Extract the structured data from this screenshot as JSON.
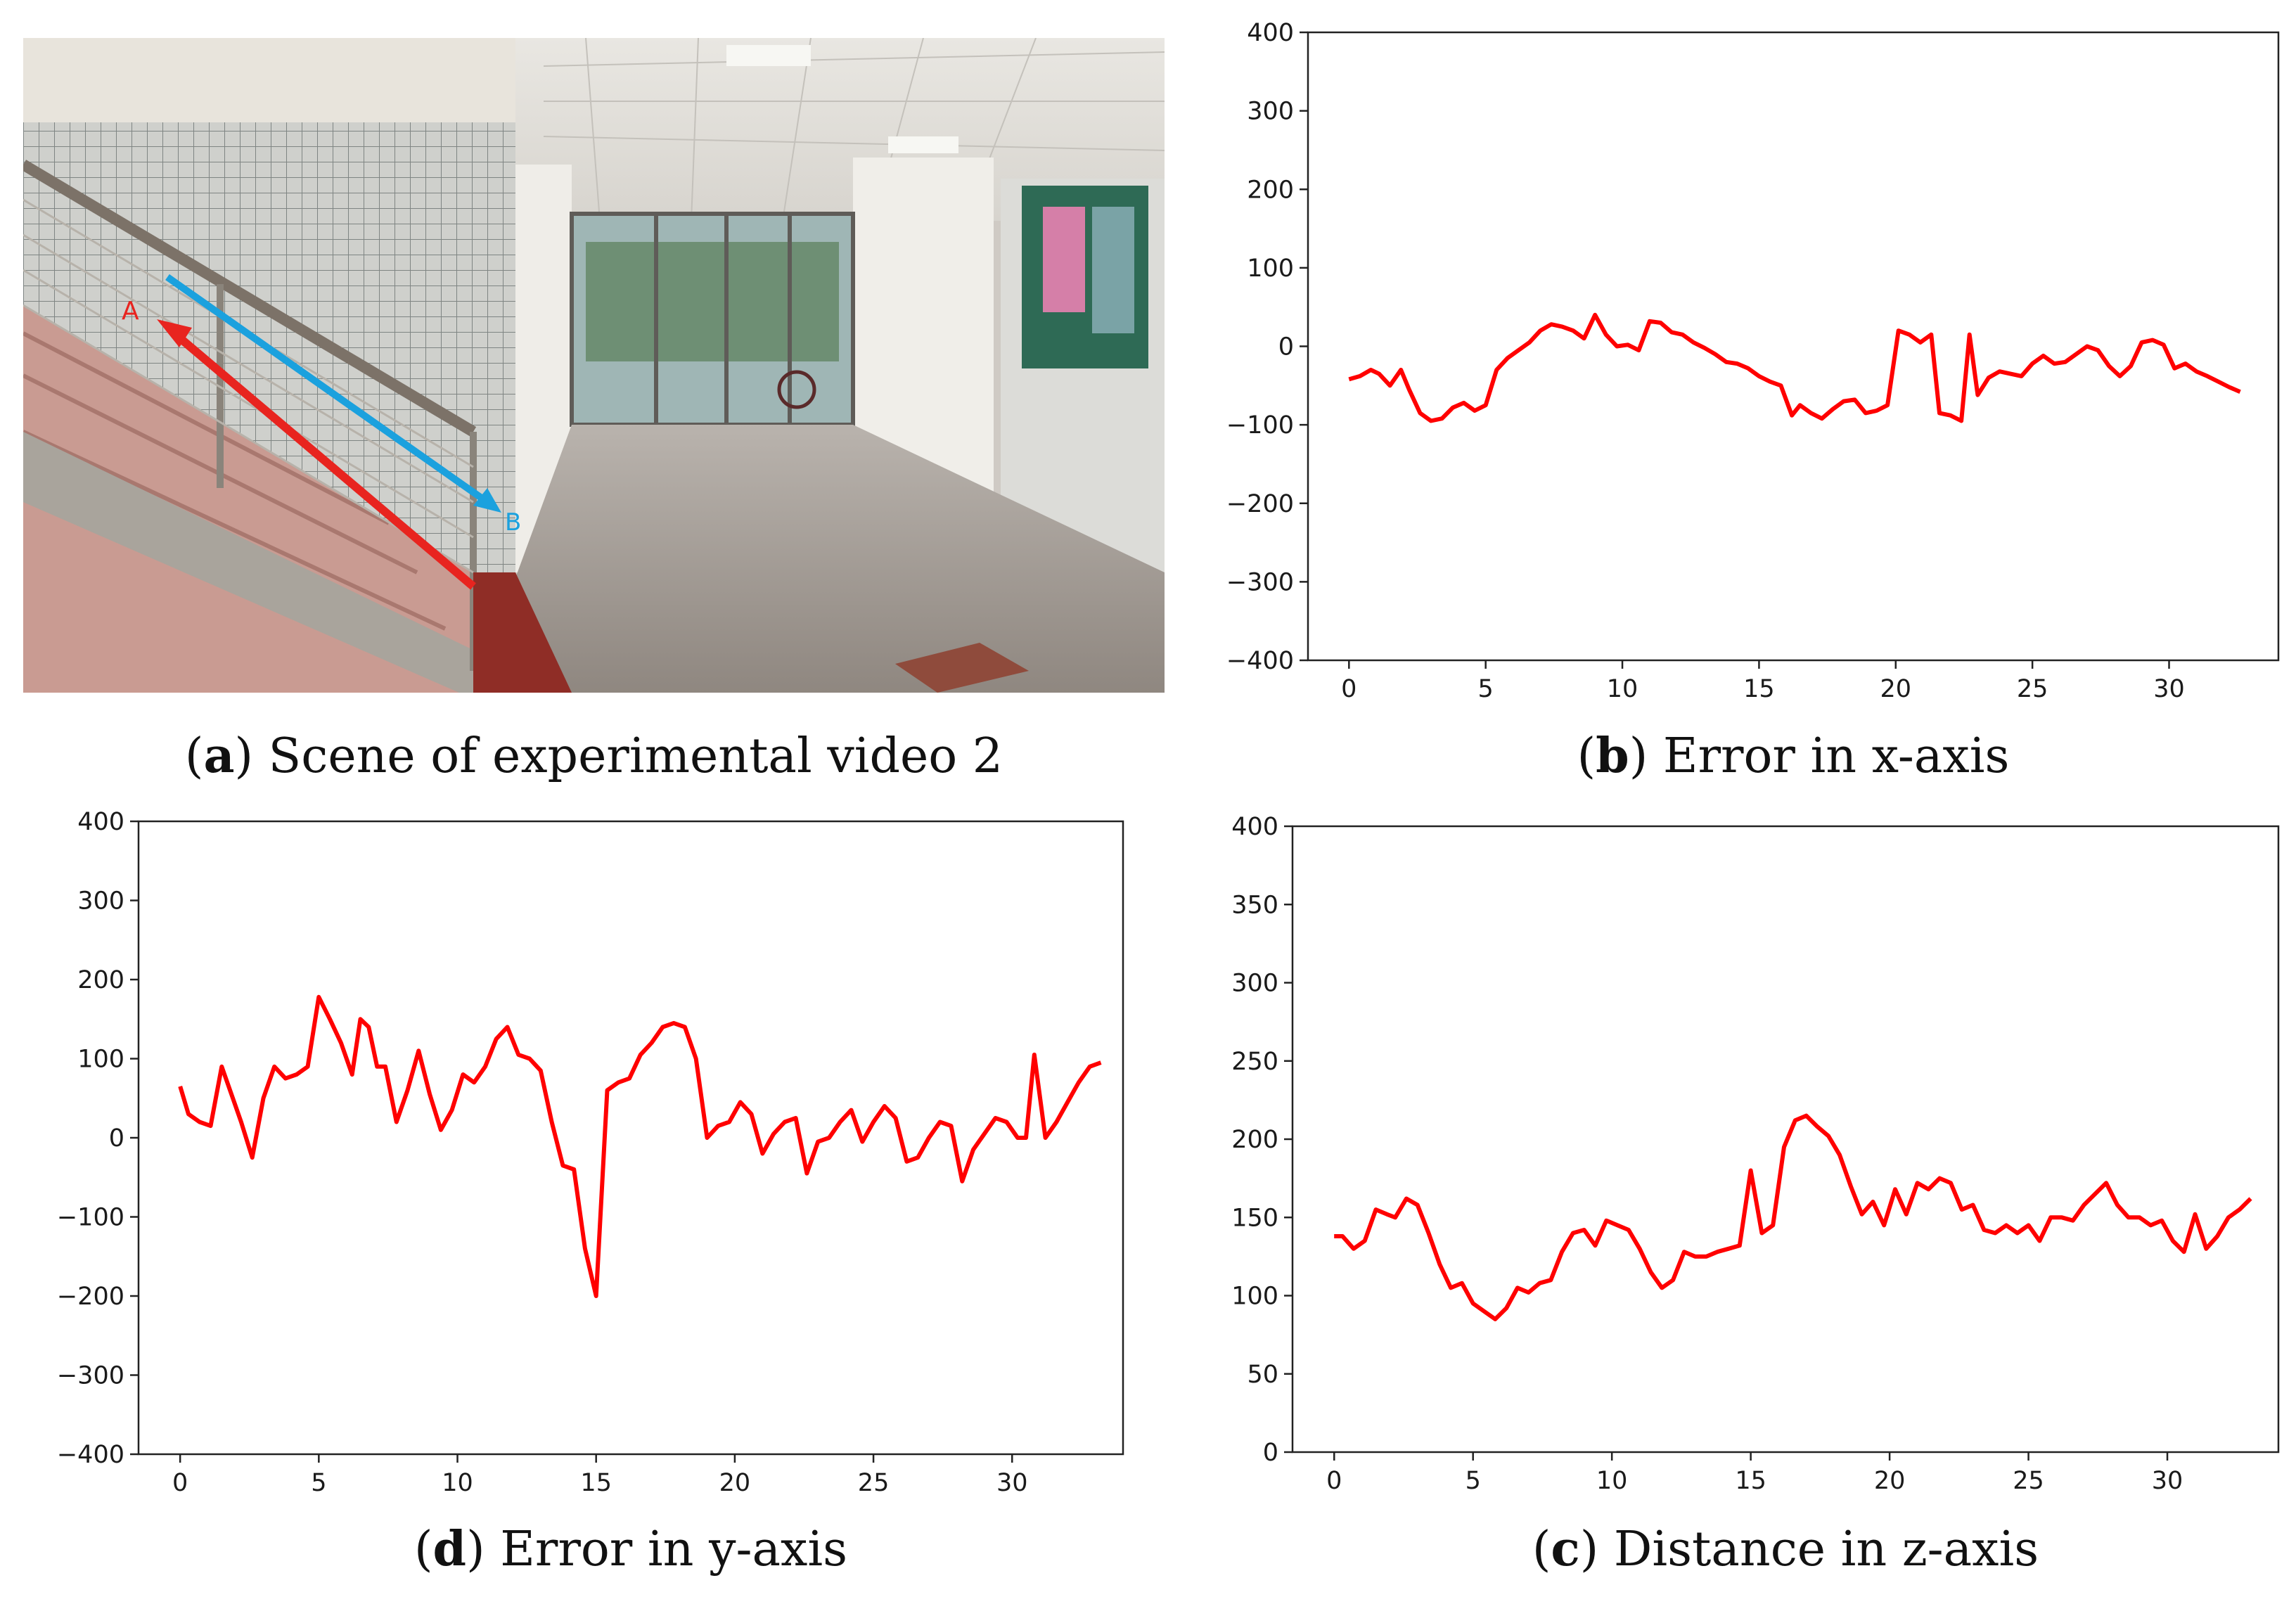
{
  "captions": {
    "a": {
      "letter": "a",
      "text": " Scene of experimental video 2"
    },
    "b": {
      "letter": "b",
      "text": " Error in x-axis"
    },
    "d": {
      "letter": "d",
      "text": " Error in y-axis"
    },
    "c": {
      "letter": "c",
      "text": " Distance in z-axis"
    }
  },
  "photo": {
    "marker_a": "A",
    "marker_b": "B",
    "colors": {
      "arrow_a": "#e8241f",
      "arrow_b": "#1ba1de"
    }
  },
  "chart_data": [
    {
      "id": "b",
      "type": "line",
      "title": "",
      "xlabel": "",
      "ylabel": "",
      "xlim": [
        -1.5,
        34
      ],
      "ylim": [
        -400,
        400
      ],
      "xticks": [
        0,
        5,
        10,
        15,
        20,
        25,
        30
      ],
      "yticks": [
        400,
        300,
        200,
        100,
        0,
        -100,
        -200,
        -300,
        -400
      ],
      "color": "#ff0000",
      "series": [
        {
          "points": [
            [
              0,
              -42
            ],
            [
              0.4,
              -38
            ],
            [
              0.8,
              -30
            ],
            [
              1.1,
              -35
            ],
            [
              1.5,
              -50
            ],
            [
              1.9,
              -30
            ],
            [
              2.2,
              -55
            ],
            [
              2.6,
              -85
            ],
            [
              3.0,
              -95
            ],
            [
              3.4,
              -92
            ],
            [
              3.8,
              -78
            ],
            [
              4.2,
              -72
            ],
            [
              4.6,
              -82
            ],
            [
              5.0,
              -75
            ],
            [
              5.4,
              -30
            ],
            [
              5.8,
              -15
            ],
            [
              6.2,
              -5
            ],
            [
              6.6,
              5
            ],
            [
              7.0,
              20
            ],
            [
              7.4,
              28
            ],
            [
              7.8,
              25
            ],
            [
              8.2,
              20
            ],
            [
              8.6,
              10
            ],
            [
              9.0,
              40
            ],
            [
              9.4,
              15
            ],
            [
              9.8,
              0
            ],
            [
              10.2,
              2
            ],
            [
              10.6,
              -5
            ],
            [
              11.0,
              32
            ],
            [
              11.4,
              30
            ],
            [
              11.8,
              18
            ],
            [
              12.2,
              15
            ],
            [
              12.6,
              5
            ],
            [
              13.0,
              -2
            ],
            [
              13.4,
              -10
            ],
            [
              13.8,
              -20
            ],
            [
              14.2,
              -22
            ],
            [
              14.6,
              -28
            ],
            [
              15.0,
              -38
            ],
            [
              15.4,
              -45
            ],
            [
              15.8,
              -50
            ],
            [
              16.2,
              -88
            ],
            [
              16.5,
              -75
            ],
            [
              16.9,
              -85
            ],
            [
              17.3,
              -92
            ],
            [
              17.7,
              -80
            ],
            [
              18.1,
              -70
            ],
            [
              18.5,
              -68
            ],
            [
              18.9,
              -85
            ],
            [
              19.3,
              -82
            ],
            [
              19.7,
              -75
            ],
            [
              20.1,
              20
            ],
            [
              20.5,
              15
            ],
            [
              20.9,
              5
            ],
            [
              21.3,
              15
            ],
            [
              21.6,
              -85
            ],
            [
              22.0,
              -88
            ],
            [
              22.4,
              -95
            ],
            [
              22.7,
              15
            ],
            [
              23.0,
              -62
            ],
            [
              23.4,
              -40
            ],
            [
              23.8,
              -32
            ],
            [
              24.2,
              -35
            ],
            [
              24.6,
              -38
            ],
            [
              25.0,
              -22
            ],
            [
              25.4,
              -12
            ],
            [
              25.8,
              -22
            ],
            [
              26.2,
              -20
            ],
            [
              26.6,
              -10
            ],
            [
              27.0,
              0
            ],
            [
              27.4,
              -5
            ],
            [
              27.8,
              -25
            ],
            [
              28.2,
              -38
            ],
            [
              28.6,
              -25
            ],
            [
              29.0,
              5
            ],
            [
              29.4,
              8
            ],
            [
              29.8,
              2
            ],
            [
              30.2,
              -28
            ],
            [
              30.6,
              -22
            ],
            [
              31.0,
              -32
            ],
            [
              31.4,
              -38
            ],
            [
              31.8,
              -45
            ],
            [
              32.2,
              -52
            ],
            [
              32.6,
              -58
            ]
          ]
        }
      ]
    },
    {
      "id": "d",
      "type": "line",
      "title": "",
      "xlabel": "",
      "ylabel": "",
      "xlim": [
        -1.5,
        34
      ],
      "ylim": [
        -400,
        400
      ],
      "xticks": [
        0,
        5,
        10,
        15,
        20,
        25,
        30
      ],
      "yticks": [
        400,
        300,
        200,
        100,
        0,
        -100,
        -200,
        -300,
        -400
      ],
      "color": "#ff0000",
      "series": [
        {
          "points": [
            [
              0,
              65
            ],
            [
              0.3,
              30
            ],
            [
              0.7,
              20
            ],
            [
              1.1,
              15
            ],
            [
              1.5,
              90
            ],
            [
              1.9,
              50
            ],
            [
              2.2,
              20
            ],
            [
              2.6,
              -25
            ],
            [
              3.0,
              50
            ],
            [
              3.4,
              90
            ],
            [
              3.8,
              75
            ],
            [
              4.2,
              80
            ],
            [
              4.6,
              90
            ],
            [
              5.0,
              178
            ],
            [
              5.4,
              150
            ],
            [
              5.8,
              120
            ],
            [
              6.2,
              80
            ],
            [
              6.5,
              150
            ],
            [
              6.8,
              140
            ],
            [
              7.1,
              90
            ],
            [
              7.4,
              90
            ],
            [
              7.8,
              20
            ],
            [
              8.2,
              60
            ],
            [
              8.6,
              110
            ],
            [
              9.0,
              55
            ],
            [
              9.4,
              10
            ],
            [
              9.8,
              35
            ],
            [
              10.2,
              80
            ],
            [
              10.6,
              70
            ],
            [
              11.0,
              90
            ],
            [
              11.4,
              125
            ],
            [
              11.8,
              140
            ],
            [
              12.2,
              105
            ],
            [
              12.6,
              100
            ],
            [
              13.0,
              85
            ],
            [
              13.4,
              20
            ],
            [
              13.8,
              -35
            ],
            [
              14.2,
              -40
            ],
            [
              14.6,
              -140
            ],
            [
              15.0,
              -200
            ],
            [
              15.4,
              60
            ],
            [
              15.8,
              70
            ],
            [
              16.2,
              75
            ],
            [
              16.6,
              105
            ],
            [
              17.0,
              120
            ],
            [
              17.4,
              140
            ],
            [
              17.8,
              145
            ],
            [
              18.2,
              140
            ],
            [
              18.6,
              100
            ],
            [
              19.0,
              0
            ],
            [
              19.4,
              15
            ],
            [
              19.8,
              20
            ],
            [
              20.2,
              45
            ],
            [
              20.6,
              30
            ],
            [
              21.0,
              -20
            ],
            [
              21.4,
              5
            ],
            [
              21.8,
              20
            ],
            [
              22.2,
              25
            ],
            [
              22.6,
              -45
            ],
            [
              23.0,
              -5
            ],
            [
              23.4,
              0
            ],
            [
              23.8,
              20
            ],
            [
              24.2,
              35
            ],
            [
              24.6,
              -5
            ],
            [
              25.0,
              20
            ],
            [
              25.4,
              40
            ],
            [
              25.8,
              25
            ],
            [
              26.2,
              -30
            ],
            [
              26.6,
              -25
            ],
            [
              27.0,
              0
            ],
            [
              27.4,
              20
            ],
            [
              27.8,
              15
            ],
            [
              28.2,
              -55
            ],
            [
              28.6,
              -15
            ],
            [
              29.0,
              5
            ],
            [
              29.4,
              25
            ],
            [
              29.8,
              20
            ],
            [
              30.2,
              0
            ],
            [
              30.5,
              0
            ],
            [
              30.8,
              105
            ],
            [
              31.2,
              0
            ],
            [
              31.6,
              20
            ],
            [
              32.0,
              45
            ],
            [
              32.4,
              70
            ],
            [
              32.8,
              90
            ],
            [
              33.2,
              95
            ]
          ]
        }
      ]
    },
    {
      "id": "c",
      "type": "line",
      "title": "",
      "xlabel": "",
      "ylabel": "",
      "xlim": [
        -1.5,
        34
      ],
      "ylim": [
        0,
        400
      ],
      "xticks": [
        0,
        5,
        10,
        15,
        20,
        25,
        30
      ],
      "yticks": [
        400,
        350,
        300,
        250,
        200,
        150,
        100,
        50,
        0
      ],
      "color": "#ff0000",
      "series": [
        {
          "points": [
            [
              0,
              138
            ],
            [
              0.3,
              138
            ],
            [
              0.7,
              130
            ],
            [
              1.1,
              135
            ],
            [
              1.5,
              155
            ],
            [
              1.9,
              152
            ],
            [
              2.2,
              150
            ],
            [
              2.6,
              162
            ],
            [
              3.0,
              158
            ],
            [
              3.4,
              140
            ],
            [
              3.8,
              120
            ],
            [
              4.2,
              105
            ],
            [
              4.6,
              108
            ],
            [
              5.0,
              95
            ],
            [
              5.4,
              90
            ],
            [
              5.8,
              85
            ],
            [
              6.2,
              92
            ],
            [
              6.6,
              105
            ],
            [
              7.0,
              102
            ],
            [
              7.4,
              108
            ],
            [
              7.8,
              110
            ],
            [
              8.2,
              128
            ],
            [
              8.6,
              140
            ],
            [
              9.0,
              142
            ],
            [
              9.4,
              132
            ],
            [
              9.8,
              148
            ],
            [
              10.2,
              145
            ],
            [
              10.6,
              142
            ],
            [
              11.0,
              130
            ],
            [
              11.4,
              115
            ],
            [
              11.8,
              105
            ],
            [
              12.2,
              110
            ],
            [
              12.6,
              128
            ],
            [
              13.0,
              125
            ],
            [
              13.4,
              125
            ],
            [
              13.8,
              128
            ],
            [
              14.2,
              130
            ],
            [
              14.6,
              132
            ],
            [
              15.0,
              180
            ],
            [
              15.4,
              140
            ],
            [
              15.8,
              145
            ],
            [
              16.2,
              195
            ],
            [
              16.6,
              212
            ],
            [
              17.0,
              215
            ],
            [
              17.4,
              208
            ],
            [
              17.8,
              202
            ],
            [
              18.2,
              190
            ],
            [
              18.6,
              170
            ],
            [
              19.0,
              152
            ],
            [
              19.4,
              160
            ],
            [
              19.8,
              145
            ],
            [
              20.2,
              168
            ],
            [
              20.6,
              152
            ],
            [
              21.0,
              172
            ],
            [
              21.4,
              168
            ],
            [
              21.8,
              175
            ],
            [
              22.2,
              172
            ],
            [
              22.6,
              155
            ],
            [
              23.0,
              158
            ],
            [
              23.4,
              142
            ],
            [
              23.8,
              140
            ],
            [
              24.2,
              145
            ],
            [
              24.6,
              140
            ],
            [
              25.0,
              145
            ],
            [
              25.4,
              135
            ],
            [
              25.8,
              150
            ],
            [
              26.2,
              150
            ],
            [
              26.6,
              148
            ],
            [
              27.0,
              158
            ],
            [
              27.4,
              165
            ],
            [
              27.8,
              172
            ],
            [
              28.2,
              158
            ],
            [
              28.6,
              150
            ],
            [
              29.0,
              150
            ],
            [
              29.4,
              145
            ],
            [
              29.8,
              148
            ],
            [
              30.2,
              135
            ],
            [
              30.6,
              128
            ],
            [
              31.0,
              152
            ],
            [
              31.4,
              130
            ],
            [
              31.8,
              138
            ],
            [
              32.2,
              150
            ],
            [
              32.6,
              155
            ],
            [
              33.0,
              162
            ]
          ]
        }
      ]
    }
  ]
}
